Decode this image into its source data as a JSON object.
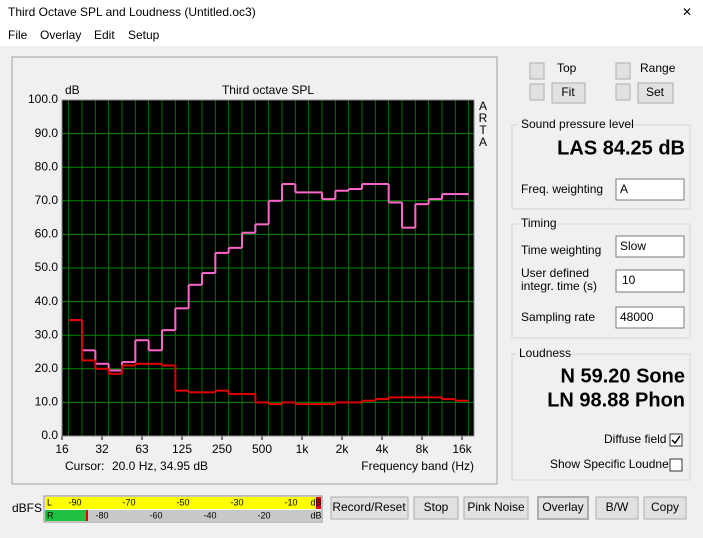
{
  "window": {
    "title": "Third Octave SPL and Loudness (Untitled.oc3)",
    "menu": [
      "File",
      "Overlay",
      "Edit",
      "Setup"
    ]
  },
  "chart_data": {
    "type": "line",
    "line_style": "step",
    "title": "Third octave SPL",
    "y_unit": "dB",
    "side_label": [
      "A",
      "R",
      "T",
      "A"
    ],
    "x_label": "Frequency band (Hz)",
    "cursor_label": "Cursor:",
    "cursor_value": "20.0 Hz, 34.95 dB",
    "categories": [
      "16",
      null,
      null,
      "32",
      null,
      null,
      "63",
      null,
      null,
      "125",
      null,
      null,
      "250",
      null,
      null,
      "500",
      null,
      null,
      "1k",
      null,
      null,
      "2k",
      null,
      null,
      "4k",
      null,
      null,
      "8k",
      null,
      null,
      "16k"
    ],
    "series": [
      {
        "color": "#ff66cc",
        "values": [
          null,
          34.5,
          25.5,
          21.5,
          19.5,
          22,
          28.5,
          25.5,
          31.5,
          38,
          45,
          48.5,
          54.5,
          56,
          60.5,
          63,
          70,
          75,
          72.5,
          72.5,
          70.5,
          73,
          73.5,
          75,
          75,
          69.5,
          62,
          69,
          70.5,
          72,
          72
        ]
      },
      {
        "color": "#e00000",
        "values": [
          null,
          34.5,
          22.5,
          20,
          18.5,
          21,
          21.5,
          21.5,
          21,
          13.5,
          13,
          13,
          13.5,
          12.5,
          12.5,
          10,
          9.5,
          10,
          9.5,
          9.5,
          9.5,
          10,
          10,
          10.5,
          11,
          11.5,
          11.5,
          11.5,
          11.5,
          11,
          10.5
        ]
      }
    ],
    "ylim": [
      0,
      100
    ],
    "yticks": [
      {
        "value": 0,
        "label": "0.0"
      },
      {
        "value": 10,
        "label": "10.0"
      },
      {
        "value": 20,
        "label": "20.0"
      },
      {
        "value": 30,
        "label": "30.0"
      },
      {
        "value": 40,
        "label": "40.0"
      },
      {
        "value": 50,
        "label": "50.0"
      },
      {
        "value": 60,
        "label": "60.0"
      },
      {
        "value": 70,
        "label": "70.0"
      },
      {
        "value": 80,
        "label": "80.0"
      },
      {
        "value": 90,
        "label": "90.0"
      },
      {
        "value": 100,
        "label": "100.0"
      }
    ],
    "grid": true,
    "background": "#000000",
    "grid_color": "#008a00"
  },
  "controls": {
    "top_label": "Top",
    "fit": "Fit",
    "range_label": "Range",
    "set": "Set"
  },
  "spl": {
    "heading": "Sound pressure level",
    "reading": "LAS 84.25 dB",
    "weighting_label": "Freq. weighting",
    "weighting_value": "A"
  },
  "timing": {
    "heading": "Timing",
    "time_weighting_label": "Time weighting",
    "time_weighting_value": "Slow",
    "integr_label_1": "User defined",
    "integr_label_2": "integr. time (s)",
    "integr_value": "10",
    "sampling_label": "Sampling rate",
    "sampling_value": "48000"
  },
  "loudness": {
    "heading": "Loudness",
    "sone": "N 59.20 Sone",
    "phon": "LN 98.88 Phon",
    "diffuse": "Diffuse field",
    "specific": "Show Specific Loudness"
  },
  "meter": {
    "unit": "dBFS",
    "left": "L",
    "right": "R",
    "top_ticks": [
      "-90",
      "-70",
      "-50",
      "-30",
      "-10",
      "dB"
    ],
    "bottom_ticks": [
      "-80",
      "-60",
      "-40",
      "-20",
      "dB"
    ]
  },
  "buttons": [
    "Record/Reset",
    "Stop",
    "Pink Noise",
    "Overlay",
    "B/W",
    "Copy"
  ]
}
